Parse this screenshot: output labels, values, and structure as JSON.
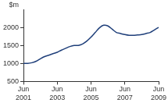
{
  "chart_data": {
    "type": "line",
    "ylabel": "$m",
    "categories": [
      "Jun 2001",
      null,
      null,
      null,
      null,
      null,
      null,
      null,
      "Jun 2003",
      null,
      null,
      null,
      null,
      null,
      null,
      null,
      "Jun 2005",
      null,
      null,
      null,
      null,
      null,
      null,
      null,
      "Jun 2007",
      null,
      null,
      null,
      null,
      null,
      null,
      null,
      "Jun 2009"
    ],
    "values": [
      1000,
      1000,
      1020,
      1060,
      1130,
      1190,
      1230,
      1270,
      1310,
      1370,
      1420,
      1470,
      1500,
      1500,
      1540,
      1620,
      1730,
      1860,
      1990,
      2060,
      2040,
      1950,
      1860,
      1830,
      1800,
      1780,
      1780,
      1790,
      1800,
      1830,
      1860,
      1930,
      2000
    ],
    "color": "#1f3f7a",
    "ylim": [
      500,
      2500
    ],
    "yticks": [
      500,
      1000,
      1500,
      2000
    ],
    "grid": false
  }
}
